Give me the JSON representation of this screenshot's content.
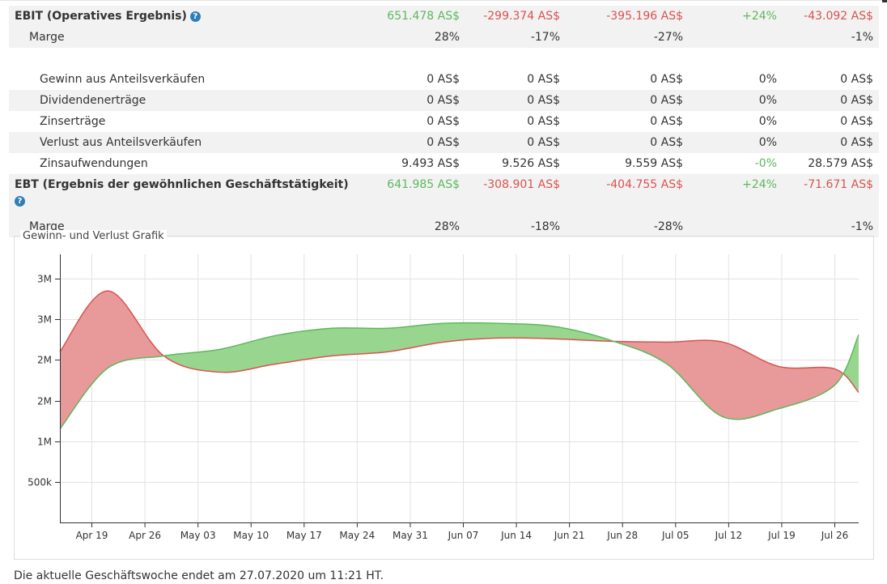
{
  "rows": [
    {
      "label": "EBIT (Operatives Ergebnis)",
      "help": true,
      "bold": true,
      "shade": true,
      "indent": 0,
      "values": [
        {
          "t": "651.478 AS$",
          "c": "pos"
        },
        {
          "t": "-299.374 AS$",
          "c": "neg"
        },
        {
          "t": "-395.196 AS$",
          "c": "neg"
        },
        {
          "t": "+24%",
          "c": "pos"
        },
        {
          "t": "-43.092 AS$",
          "c": "neg"
        }
      ]
    },
    {
      "label": "Marge",
      "bold": false,
      "shade": true,
      "indent": 1,
      "values": [
        {
          "t": "28%"
        },
        {
          "t": "-17%"
        },
        {
          "t": "-27%"
        },
        {
          "t": ""
        },
        {
          "t": "-1%"
        }
      ]
    },
    {
      "gap": true
    },
    {
      "label": "Gewinn aus Anteilsverkäufen",
      "shade": false,
      "indent": 2,
      "values": [
        {
          "t": "0 AS$"
        },
        {
          "t": "0 AS$"
        },
        {
          "t": "0 AS$"
        },
        {
          "t": "0%"
        },
        {
          "t": "0 AS$"
        }
      ]
    },
    {
      "label": "Dividendenerträge",
      "shade": true,
      "indent": 2,
      "values": [
        {
          "t": "0 AS$"
        },
        {
          "t": "0 AS$"
        },
        {
          "t": "0 AS$"
        },
        {
          "t": "0%"
        },
        {
          "t": "0 AS$"
        }
      ]
    },
    {
      "label": "Zinserträge",
      "shade": false,
      "indent": 2,
      "values": [
        {
          "t": "0 AS$"
        },
        {
          "t": "0 AS$"
        },
        {
          "t": "0 AS$"
        },
        {
          "t": "0%"
        },
        {
          "t": "0 AS$"
        }
      ]
    },
    {
      "label": "Verlust aus Anteilsverkäufen",
      "shade": true,
      "indent": 2,
      "values": [
        {
          "t": "0 AS$"
        },
        {
          "t": "0 AS$"
        },
        {
          "t": "0 AS$"
        },
        {
          "t": "0%"
        },
        {
          "t": "0 AS$"
        }
      ]
    },
    {
      "label": "Zinsaufwendungen",
      "shade": false,
      "indent": 2,
      "values": [
        {
          "t": "9.493 AS$"
        },
        {
          "t": "9.526 AS$"
        },
        {
          "t": "9.559 AS$"
        },
        {
          "t": "-0%",
          "c": "pos"
        },
        {
          "t": "28.579 AS$"
        }
      ]
    },
    {
      "label": "EBT (Ergebnis der gewöhnlichen Geschäftstätigkeit)",
      "help": true,
      "helpBlock": true,
      "bold": true,
      "shade": true,
      "indent": 0,
      "tall": true,
      "values": [
        {
          "t": "641.985 AS$",
          "c": "pos"
        },
        {
          "t": "-308.901 AS$",
          "c": "neg"
        },
        {
          "t": "-404.755 AS$",
          "c": "neg"
        },
        {
          "t": "+24%",
          "c": "pos"
        },
        {
          "t": "-71.671 AS$",
          "c": "neg"
        }
      ]
    },
    {
      "label": "Marge",
      "bold": false,
      "shade": true,
      "indent": 1,
      "values": [
        {
          "t": "28%"
        },
        {
          "t": "-18%"
        },
        {
          "t": "-28%"
        },
        {
          "t": ""
        },
        {
          "t": "-1%"
        }
      ]
    }
  ],
  "help_icon": "question-circle-icon",
  "chart_title": "Gewinn- und Verlust Grafik",
  "colors": {
    "positive": "#5cb85c",
    "negative": "#d9534f",
    "green_fill": "#98d68f",
    "red_fill": "#e89999"
  },
  "chart_data": {
    "type": "area",
    "xlabels": [
      "Apr 19",
      "Apr 26",
      "May 03",
      "May 10",
      "May 17",
      "May 24",
      "May 31",
      "Jun 07",
      "Jun 14",
      "Jun 21",
      "Jun 28",
      "Jul 05",
      "Jul 12",
      "Jul 19",
      "Jul 26"
    ],
    "ytick_labels": [
      "500k",
      "1M",
      "2M",
      "2M",
      "3M",
      "3M"
    ],
    "ytick_values": [
      500000,
      1000000,
      1500000,
      2000000,
      2500000,
      3000000
    ],
    "ylim": [
      0,
      3300000
    ],
    "x": [
      0,
      6,
      13,
      20,
      27,
      34,
      41,
      48,
      55,
      62,
      69,
      76,
      83,
      90,
      97,
      100
    ],
    "series": [
      {
        "color": "#d9534f",
        "values": [
          2100000,
          2850000,
          2050000,
          1850000,
          1950000,
          2050000,
          2100000,
          2220000,
          2270000,
          2260000,
          2230000,
          2220000,
          2220000,
          1920000,
          1890000,
          1600000
        ]
      },
      {
        "color": "#5cb85c",
        "values": [
          1150000,
          1900000,
          2050000,
          2130000,
          2300000,
          2390000,
          2390000,
          2450000,
          2450000,
          2410000,
          2240000,
          1950000,
          1300000,
          1400000,
          1690000,
          2310000
        ]
      }
    ]
  },
  "footer": "Die aktuelle Geschäftswoche endet am 27.07.2020 um 11:21 HT."
}
